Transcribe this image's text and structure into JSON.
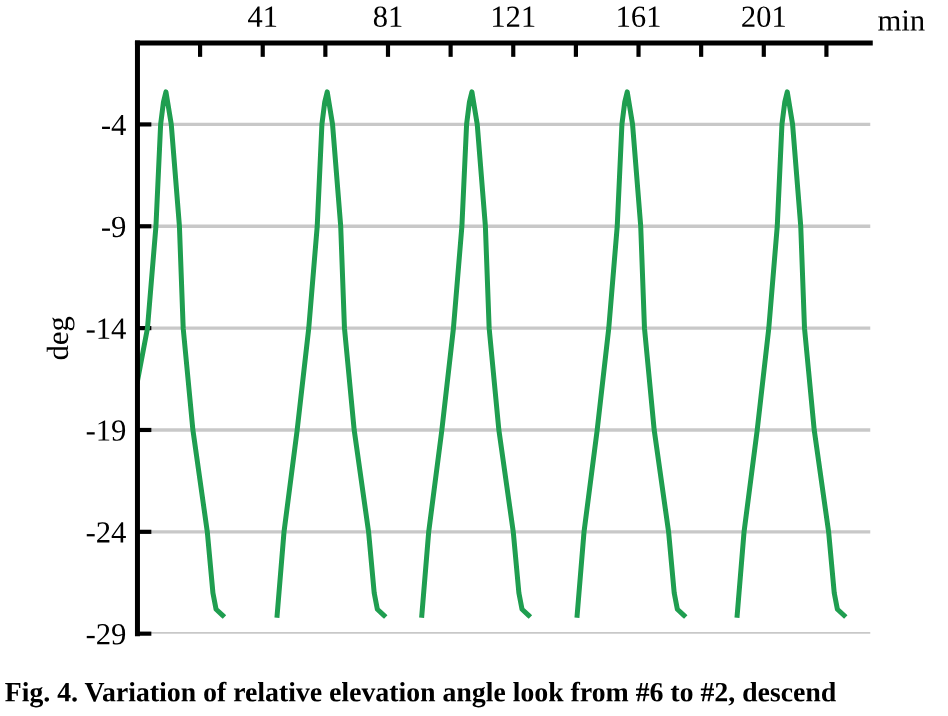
{
  "chart_data": {
    "type": "line",
    "xlabel": "min",
    "ylabel": "deg",
    "x": [
      1,
      4.2,
      6.9,
      8.4,
      9.3,
      10.1,
      11.8,
      14.4,
      15.6,
      18.7,
      23.3,
      25.1,
      26.1,
      28.2,
      null,
      45.6,
      47.8,
      52,
      55.7,
      58.4,
      59.9,
      60.8,
      61.6,
      63.3,
      65.9,
      67.1,
      70.2,
      74.8,
      76.6,
      77.6,
      79.7,
      null,
      91.8,
      94,
      98.2,
      101.9,
      104.6,
      106.1,
      107,
      107.8,
      109.5,
      112.1,
      113.3,
      116.4,
      121,
      122.8,
      123.8,
      125.9,
      null,
      141.4,
      143.6,
      147.8,
      151.5,
      154.2,
      155.7,
      156.6,
      157.4,
      159.1,
      161.7,
      162.9,
      166,
      170.6,
      172.4,
      173.4,
      175.5,
      null,
      192.5,
      194.7,
      198.9,
      202.6,
      205.3,
      206.8,
      207.7,
      208.5,
      210.2,
      212.8,
      214,
      217.1,
      221.7,
      223.5,
      224.5,
      226.6
    ],
    "series": [
      {
        "color": "#1f9e50",
        "values": [
          -16.6,
          -14,
          -9,
          -4,
          -2.9,
          -2.4,
          -4,
          -9,
          -14,
          -19,
          -24,
          -27,
          -27.8,
          -28.1,
          null,
          -28.1,
          -24,
          -19,
          -14,
          -9,
          -4,
          -2.9,
          -2.4,
          -4,
          -9,
          -14,
          -19,
          -24,
          -27,
          -27.8,
          -28.1,
          null,
          -28.1,
          -24,
          -19,
          -14,
          -9,
          -4,
          -2.9,
          -2.4,
          -4,
          -9,
          -14,
          -19,
          -24,
          -27,
          -27.8,
          -28.1,
          null,
          -28.1,
          -24,
          -19,
          -14,
          -9,
          -4,
          -2.9,
          -2.4,
          -4,
          -9,
          -14,
          -19,
          -24,
          -27,
          -27.8,
          -28.1,
          null,
          -28.1,
          -24,
          -19,
          -14,
          -9,
          -4,
          -2.9,
          -2.4,
          -4,
          -9,
          -14,
          -19,
          -24,
          -27,
          -27.8,
          -28.1
        ]
      }
    ],
    "xlim": [
      1,
      235
    ],
    "xticks": [
      {
        "value": 21,
        "label": null
      },
      41,
      {
        "value": 61,
        "label": null
      },
      81,
      {
        "value": 101,
        "label": null
      },
      121,
      {
        "value": 141,
        "label": null
      },
      161,
      {
        "value": 181,
        "label": null
      },
      201,
      {
        "value": 221,
        "label": null
      }
    ],
    "ylim": [
      -29,
      0
    ],
    "yticks": [
      -4,
      -9,
      -14,
      -19,
      -24,
      -29
    ],
    "grid": "y",
    "line_style": "solid",
    "marker": "none",
    "annotations": [
      "Fig. 4. Variation of relative elevation angle look from #6 to #2, descend"
    ]
  }
}
